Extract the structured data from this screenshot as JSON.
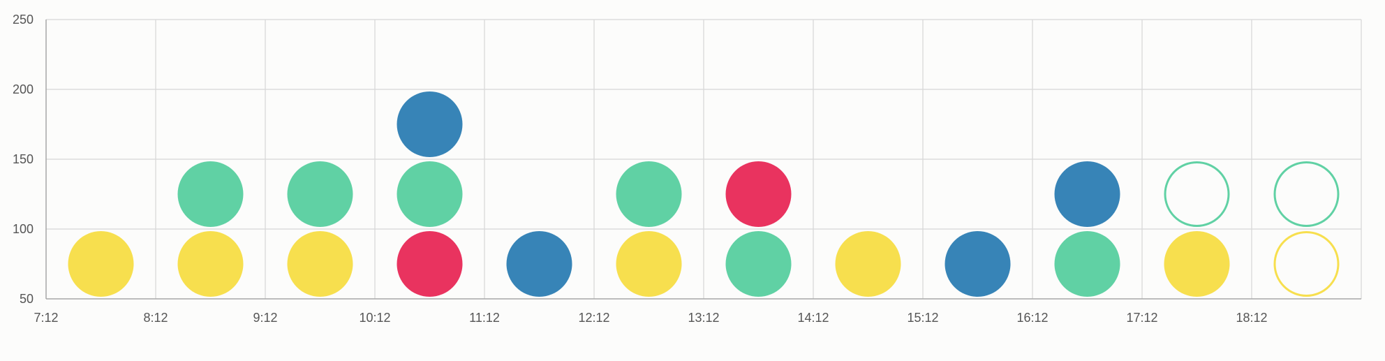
{
  "chart_data": {
    "type": "scatter",
    "title": "",
    "xlabel": "",
    "ylabel": "",
    "x_ticks": [
      "7:12",
      "8:12",
      "9:12",
      "10:12",
      "11:12",
      "12:12",
      "13:12",
      "14:12",
      "15:12",
      "16:12",
      "17:12",
      "18:12"
    ],
    "y_ticks": [
      50,
      100,
      150,
      200,
      250
    ],
    "ylim": [
      50,
      250
    ],
    "grid": true,
    "legend": "none",
    "colors": {
      "yellow": "#f7df4e",
      "green": "#60d1a4",
      "red": "#e9335f",
      "blue": "#3784b7"
    },
    "points": [
      {
        "x": "7:42",
        "y": 75,
        "color": "yellow",
        "filled": true
      },
      {
        "x": "8:42",
        "y": 75,
        "color": "yellow",
        "filled": true
      },
      {
        "x": "8:42",
        "y": 125,
        "color": "green",
        "filled": true
      },
      {
        "x": "9:42",
        "y": 75,
        "color": "yellow",
        "filled": true
      },
      {
        "x": "9:42",
        "y": 125,
        "color": "green",
        "filled": true
      },
      {
        "x": "10:42",
        "y": 75,
        "color": "red",
        "filled": true
      },
      {
        "x": "10:42",
        "y": 125,
        "color": "green",
        "filled": true
      },
      {
        "x": "10:42",
        "y": 175,
        "color": "blue",
        "filled": true
      },
      {
        "x": "11:42",
        "y": 75,
        "color": "blue",
        "filled": true
      },
      {
        "x": "12:42",
        "y": 75,
        "color": "yellow",
        "filled": true
      },
      {
        "x": "12:42",
        "y": 125,
        "color": "green",
        "filled": true
      },
      {
        "x": "13:42",
        "y": 75,
        "color": "green",
        "filled": true
      },
      {
        "x": "13:42",
        "y": 125,
        "color": "red",
        "filled": true
      },
      {
        "x": "14:42",
        "y": 75,
        "color": "yellow",
        "filled": true
      },
      {
        "x": "15:42",
        "y": 75,
        "color": "blue",
        "filled": true
      },
      {
        "x": "16:42",
        "y": 75,
        "color": "green",
        "filled": true
      },
      {
        "x": "16:42",
        "y": 125,
        "color": "blue",
        "filled": true
      },
      {
        "x": "17:42",
        "y": 75,
        "color": "yellow",
        "filled": true
      },
      {
        "x": "17:42",
        "y": 125,
        "color": "green",
        "filled": false
      },
      {
        "x": "18:42",
        "y": 75,
        "color": "yellow",
        "filled": false
      },
      {
        "x": "18:42",
        "y": 125,
        "color": "green",
        "filled": false
      }
    ]
  }
}
